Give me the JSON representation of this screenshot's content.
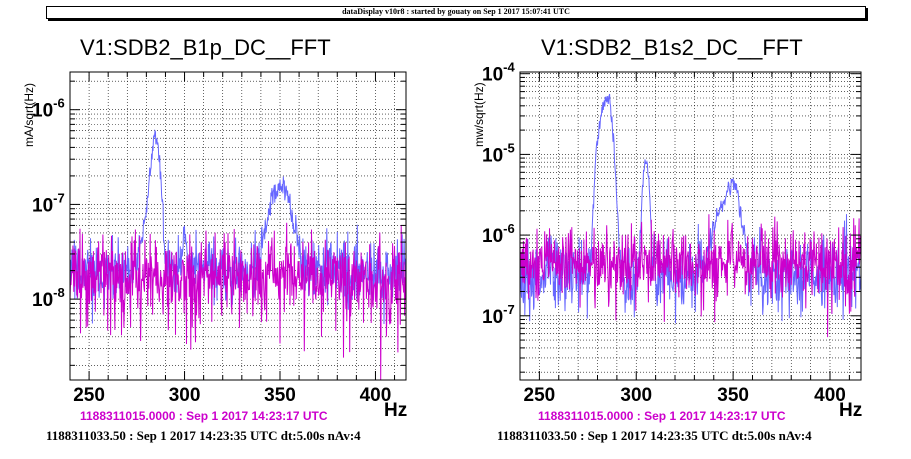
{
  "header": {
    "title": "dataDisplay v10r8 : started by gouaty on Sep  1 2017 15:07:41 UTC"
  },
  "colors": {
    "current_trace": "#6666ff",
    "reference_trace": "#cc00cc",
    "reference_text": "#cc00cc",
    "grid": "#000000"
  },
  "chart_data": [
    {
      "type": "line",
      "title": "V1:SDB2_B1p_DC__FFT",
      "ylabel": "mA/sqrt(Hz)",
      "xlabel": "Hz",
      "yscale": "log",
      "grid": true,
      "xlim": [
        240,
        416
      ],
      "ylim": [
        1.4e-09,
        2.5e-06
      ],
      "xticks": [
        250,
        300,
        350,
        400
      ],
      "yticks": [
        {
          "value": 1e-08,
          "mantissa": "10",
          "exp": "-8"
        },
        {
          "value": 1e-07,
          "mantissa": "10",
          "exp": "-7"
        },
        {
          "value": 1e-06,
          "mantissa": "10",
          "exp": "-6"
        }
      ],
      "reference_time": "1188311015.0000 : Sep  1 2017 14:23:17 UTC",
      "current_time": "1188311033.50 : Sep  1 2017 14:23:35 UTC dt:5.00s nAv:4",
      "series": [
        {
          "role": "current",
          "color": "#6666ff",
          "baseline": 2e-08,
          "noise_decades": 0.32,
          "peaks": [
            {
              "center": 285,
              "amplitude": 4.8e-07,
              "width": 1.8
            },
            {
              "center": 281,
              "amplitude": 7e-08,
              "width": 2.5
            },
            {
              "center": 350,
              "amplitude": 1.4e-07,
              "width": 4.5
            },
            {
              "center": 300,
              "amplitude": 3e-08,
              "width": 1.0
            }
          ],
          "seed": 11
        },
        {
          "role": "reference",
          "color": "#cc00cc",
          "baseline": 1.7e-08,
          "noise_decades": 0.38,
          "peaks": [],
          "seed": 23
        }
      ]
    },
    {
      "type": "line",
      "title": "V1:SDB2_B1s2_DC__FFT",
      "ylabel": "mw/sqrt(Hz)",
      "xlabel": "Hz",
      "yscale": "log",
      "grid": true,
      "xlim": [
        240,
        416
      ],
      "ylim": [
        1.6e-08,
        0.000105
      ],
      "xticks": [
        250,
        300,
        350,
        400
      ],
      "yticks": [
        {
          "value": 1e-07,
          "mantissa": "10",
          "exp": "-7"
        },
        {
          "value": 1e-06,
          "mantissa": "10",
          "exp": "-6"
        },
        {
          "value": 1e-05,
          "mantissa": "10",
          "exp": "-5"
        },
        {
          "value": 0.0001,
          "mantissa": "10",
          "exp": "-4"
        }
      ],
      "reference_time": "1188311015.0000 : Sep  1 2017 14:23:17 UTC",
      "current_time": "1188311033.50 : Sep  1 2017 14:23:35 UTC dt:5.00s nAv:4",
      "series": [
        {
          "role": "current",
          "color": "#6666ff",
          "baseline": 3e-07,
          "noise_decades": 0.42,
          "peaks": [
            {
              "center": 285,
              "amplitude": 5.5e-05,
              "width": 2.0
            },
            {
              "center": 281,
              "amplitude": 1.6e-05,
              "width": 1.5
            },
            {
              "center": 305,
              "amplitude": 8e-06,
              "width": 1.3
            },
            {
              "center": 350,
              "amplitude": 3.8e-06,
              "width": 3.0
            },
            {
              "center": 343,
              "amplitude": 1.4e-06,
              "width": 3.5
            }
          ],
          "seed": 37
        },
        {
          "role": "reference",
          "color": "#cc00cc",
          "baseline": 4.5e-07,
          "noise_decades": 0.4,
          "peaks": [],
          "seed": 53
        }
      ]
    }
  ]
}
